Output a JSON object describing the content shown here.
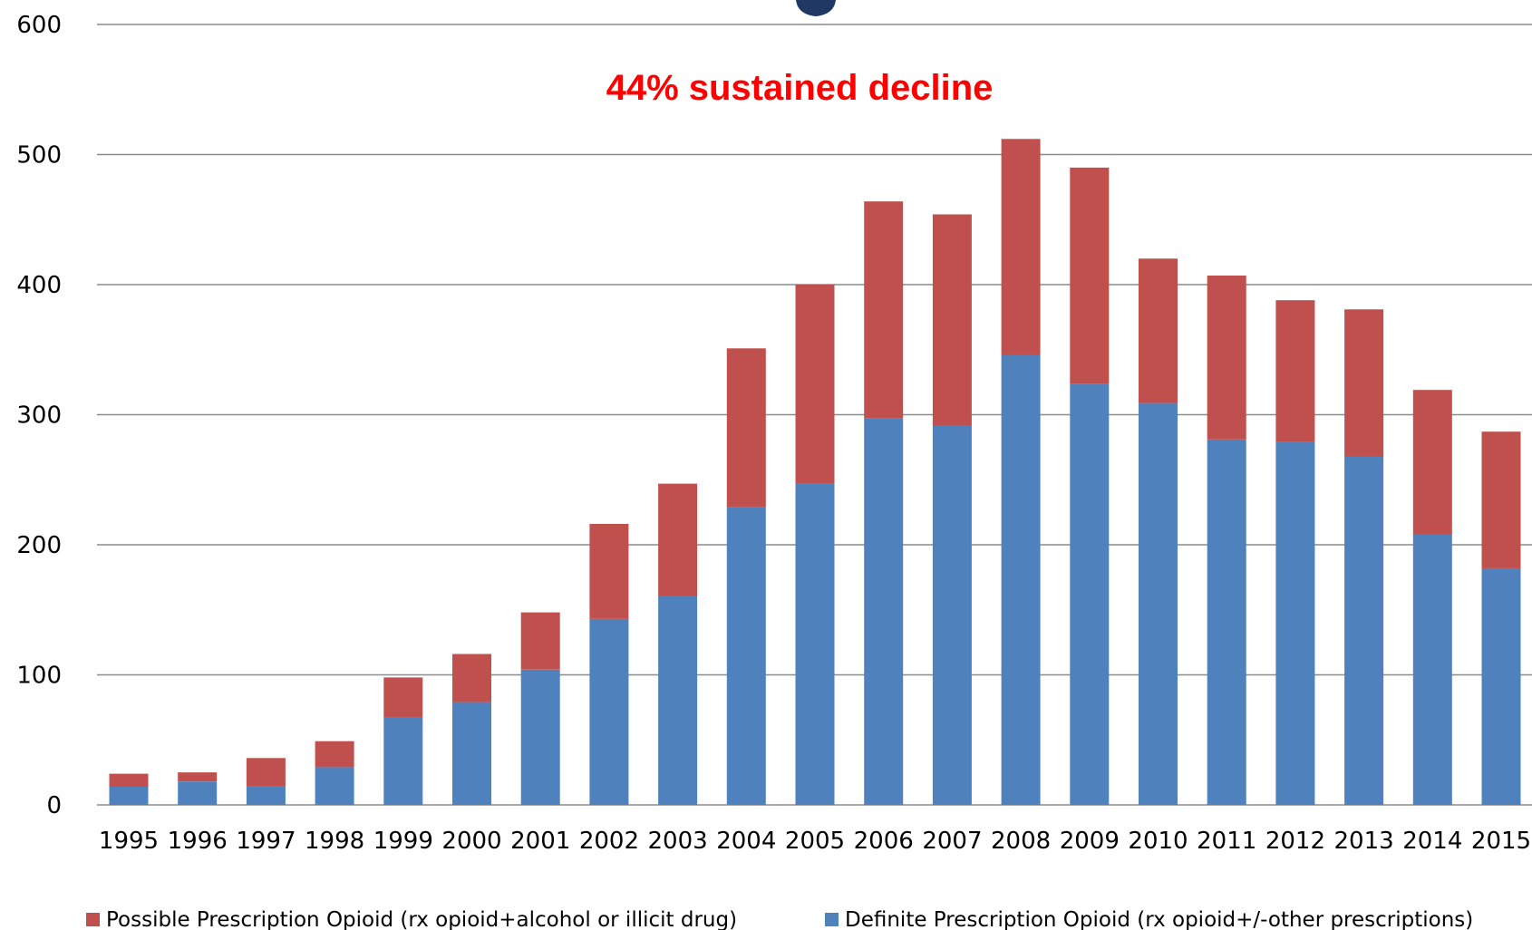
{
  "chart_data": {
    "type": "bar",
    "stacked": true,
    "categories": [
      "1995",
      "1996",
      "1997",
      "1998",
      "1999",
      "2000",
      "2001",
      "2002",
      "2003",
      "2004",
      "2005",
      "2006",
      "2007",
      "2008",
      "2009",
      "2010",
      "2011",
      "2012",
      "2013",
      "2014",
      "2015"
    ],
    "series": [
      {
        "name": "Definite Prescription Opioid  (rx opioid+/-other prescriptions)",
        "color": "#4f81bd",
        "values": [
          14,
          18,
          14,
          29,
          67,
          79,
          104,
          143,
          161,
          229,
          247,
          297,
          292,
          346,
          324,
          309,
          281,
          279,
          268,
          208,
          182
        ]
      },
      {
        "name": "Possible Prescription Opioid (rx opioid+alcohol or illicit drug)",
        "color": "#c0504d",
        "values": [
          10,
          7,
          22,
          20,
          31,
          37,
          44,
          73,
          86,
          122,
          153,
          167,
          162,
          166,
          166,
          111,
          126,
          109,
          113,
          111,
          105
        ]
      }
    ],
    "ylim": [
      0,
      600
    ],
    "yticks": [
      "0",
      "100",
      "200",
      "300",
      "400",
      "500",
      "600"
    ],
    "grid": true,
    "legend_position": "bottom",
    "legend_order": [
      1,
      0
    ],
    "annotation": "44% sustained decline"
  }
}
